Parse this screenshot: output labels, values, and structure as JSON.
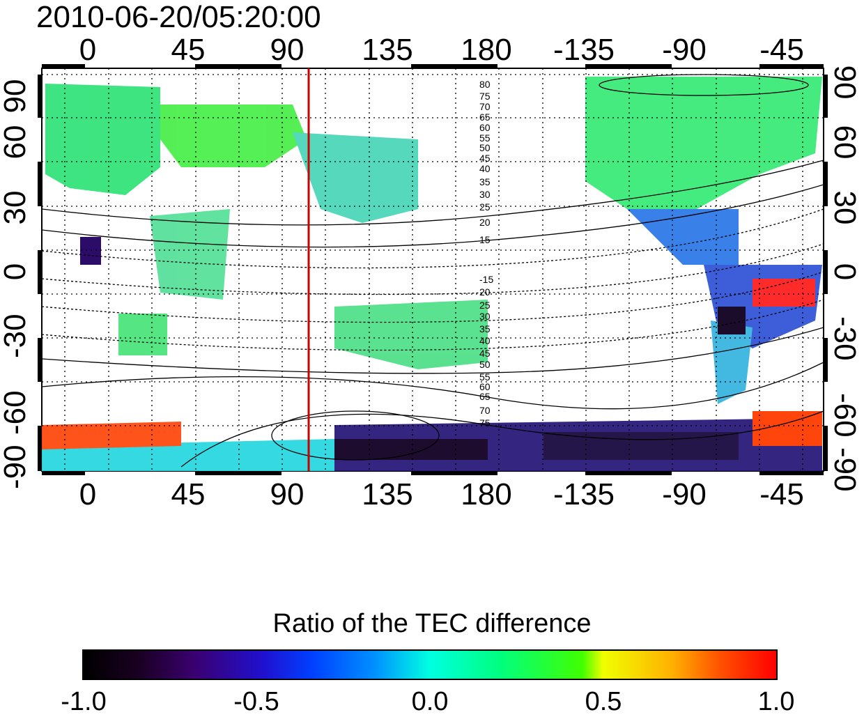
{
  "title": "2010-06-20/05:20:00",
  "lon_ticks": [
    "0",
    "45",
    "90",
    "135",
    "180",
    "-135",
    "-90",
    "-45"
  ],
  "lat_ticks": [
    "90",
    "60",
    "30",
    "0",
    "-30",
    "-60",
    "-90"
  ],
  "contour_labels_north": [
    "80",
    "75",
    "70",
    "65",
    "60",
    "55",
    "50",
    "45",
    "40",
    "35",
    "30",
    "25",
    "20",
    "15"
  ],
  "contour_labels_south": [
    "-15",
    "20",
    "25",
    "30",
    "35",
    "40",
    "45",
    "50",
    "55",
    "60",
    "65",
    "70",
    "75"
  ],
  "colorbar": {
    "title": "Ratio of the TEC difference",
    "labels": [
      "-1.0",
      "-0.5",
      "0.0",
      "0.5",
      "1.0"
    ],
    "min": -1.0,
    "max": 1.0
  },
  "colors": {
    "marker_line": "#cc0000",
    "frame": "#000000"
  }
}
